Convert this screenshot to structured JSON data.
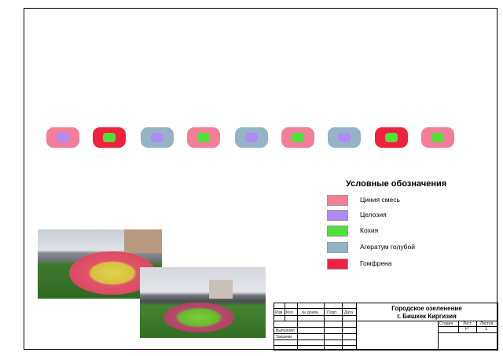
{
  "colors": {
    "zinnia": "#f27f97",
    "celosia": "#b08af5",
    "kochia": "#4fe03a",
    "ageratum": "#94b4c6",
    "gomphrena": "#f0213e"
  },
  "beds": [
    {
      "outer": "zinnia",
      "inner": "celosia"
    },
    {
      "outer": "gomphrena",
      "inner": "kochia"
    },
    {
      "outer": "ageratum",
      "inner": "celosia"
    },
    {
      "outer": "zinnia",
      "inner": "kochia"
    },
    {
      "outer": "ageratum",
      "inner": "celosia"
    },
    {
      "outer": "zinnia",
      "inner": "kochia"
    },
    {
      "outer": "ageratum",
      "inner": "celosia"
    },
    {
      "outer": "gomphrena",
      "inner": "kochia"
    },
    {
      "outer": "zinnia",
      "inner": "kochia"
    }
  ],
  "legend": {
    "title": "Условные обозначения",
    "items": [
      {
        "key": "zinnia",
        "label": "Циния смесь"
      },
      {
        "key": "celosia",
        "label": "Целозия"
      },
      {
        "key": "kochia",
        "label": "Кохия"
      },
      {
        "key": "ageratum",
        "label": "Агератум голубой"
      },
      {
        "key": "gomphrena",
        "label": "Гомфрена"
      }
    ]
  },
  "titleblock": {
    "title1": "Городское озеленение",
    "title2": "г. Бишкек Киргизия",
    "headers": [
      "Изм",
      "Кол.",
      "№ докум.",
      "Подп.",
      "Дата"
    ],
    "performed": "Выполнил",
    "customer": "Заказчик",
    "stage": "Стадия",
    "sheet": "Лист",
    "sheets": "Листов",
    "stage_val": "",
    "sheet_val": "Р",
    "sheets_val": "1"
  }
}
